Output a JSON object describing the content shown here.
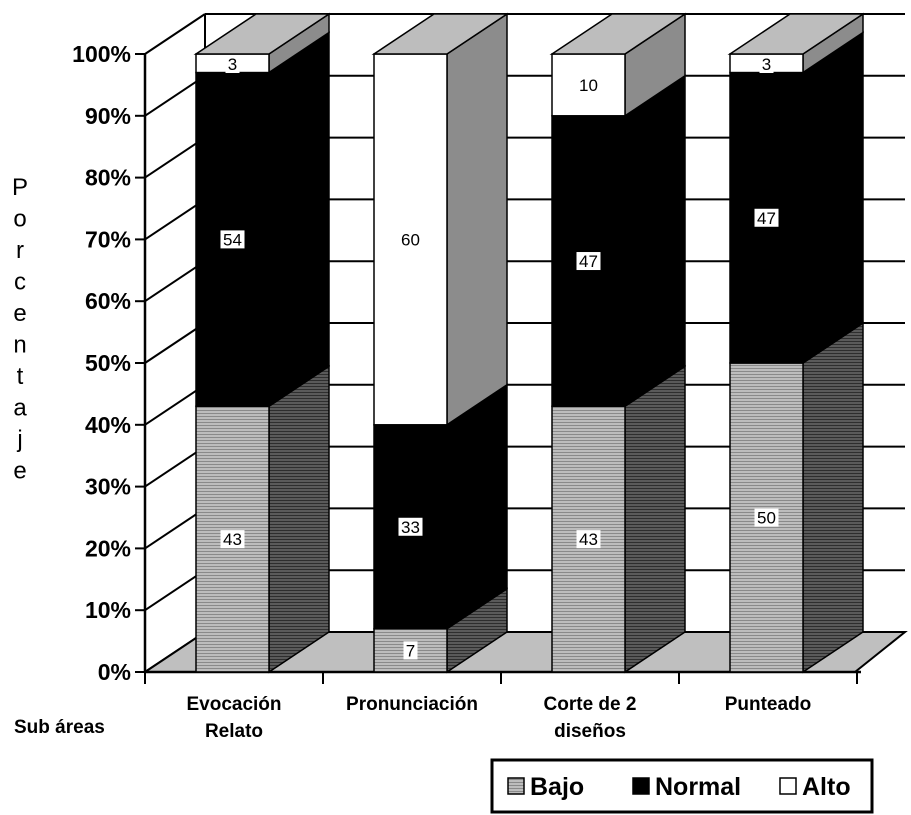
{
  "chart_data": {
    "type": "bar",
    "stacked": true,
    "percent_stacked": true,
    "three_d": true,
    "categories": [
      [
        "Evocación",
        "Relato"
      ],
      [
        "Pronunciación"
      ],
      [
        "Corte de 2",
        "diseños"
      ],
      [
        "Punteado"
      ]
    ],
    "series": [
      {
        "name": "Bajo",
        "values": [
          43,
          7,
          43,
          50
        ],
        "color": "#b3b3b3",
        "pattern": "horizontal-lines"
      },
      {
        "name": "Normal",
        "values": [
          54,
          33,
          47,
          47
        ],
        "color": "#000000"
      },
      {
        "name": "Alto",
        "values": [
          3,
          60,
          10,
          3
        ],
        "color": "#ffffff"
      }
    ],
    "ylabel": "Porcentaje",
    "xlabel": "Sub áreas",
    "ylim": [
      0,
      100
    ],
    "yticks": [
      "0%",
      "10%",
      "20%",
      "30%",
      "40%",
      "50%",
      "60%",
      "70%",
      "80%",
      "90%",
      "100%"
    ],
    "grid": true,
    "legend_position": "bottom-right"
  }
}
